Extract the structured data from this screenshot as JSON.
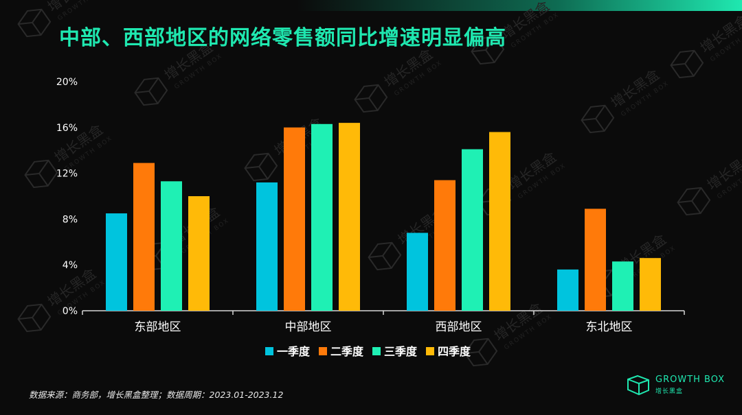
{
  "title": "中部、西部地区的网络零售额同比增速明显偏高",
  "source": "数据来源：商务部，增长黑盒整理；数据周期：2023.01-2023.12",
  "brand": {
    "name": "GROWTH BOX",
    "cn": "增长黑盒"
  },
  "watermark": {
    "cn": "增长黑盒",
    "en": "GROWTH BOX"
  },
  "colors": {
    "accent": "#1fe8b0",
    "background": "#0b0b0b"
  },
  "chart_data": {
    "type": "bar",
    "categories": [
      "东部地区",
      "中部地区",
      "西部地区",
      "东北地区"
    ],
    "series": [
      {
        "name": "一季度",
        "color": "#00c4de",
        "values": [
          8.5,
          11.2,
          6.8,
          3.6
        ]
      },
      {
        "name": "二季度",
        "color": "#ff7a0a",
        "values": [
          12.9,
          16.0,
          11.4,
          8.9
        ]
      },
      {
        "name": "三季度",
        "color": "#1ff0b4",
        "values": [
          11.3,
          16.3,
          14.1,
          4.3
        ]
      },
      {
        "name": "四季度",
        "color": "#ffba08",
        "values": [
          10.0,
          16.4,
          15.6,
          4.6
        ]
      }
    ],
    "yticks": [
      "0%",
      "4%",
      "8%",
      "12%",
      "16%",
      "20%"
    ],
    "ylim": [
      0,
      20
    ],
    "grid": false,
    "legend": "bottom-center"
  }
}
